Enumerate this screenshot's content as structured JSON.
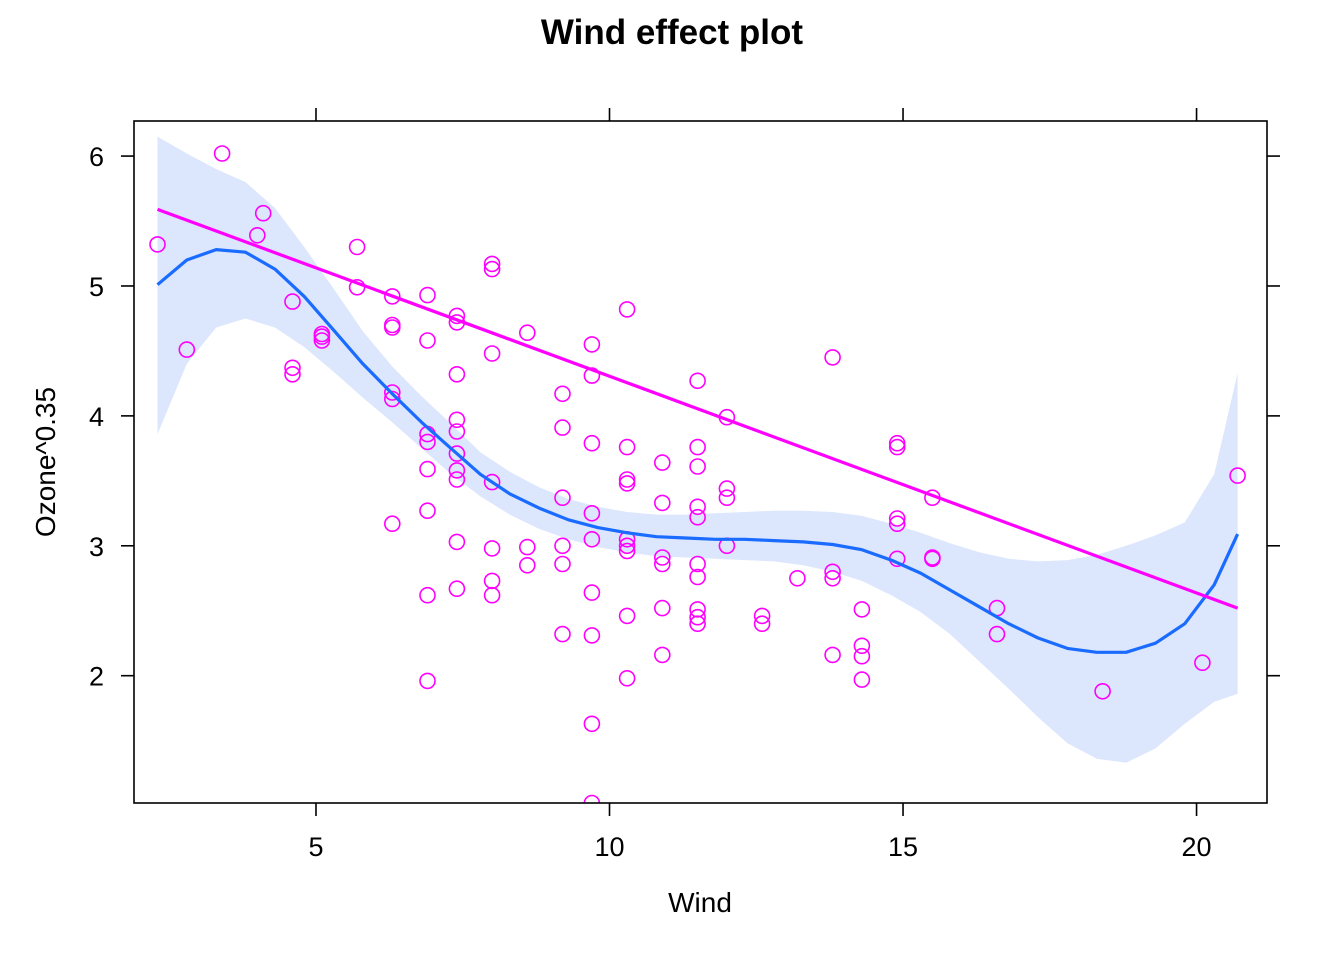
{
  "chart_data": {
    "type": "scatter",
    "title": "Wind effect plot",
    "xlabel": "Wind",
    "ylabel": "Ozone^0.35",
    "xlim": [
      1.9,
      21.2
    ],
    "ylim": [
      1.02,
      6.27
    ],
    "x_ticks": [
      5,
      10,
      15,
      20
    ],
    "y_ticks": [
      2,
      3,
      4,
      5,
      6
    ],
    "grid": false,
    "legend": "none",
    "colors": {
      "points": "#ff00ff",
      "linear_fit": "#ff00ff",
      "smooth_fit": "#1a6bff",
      "confidence_band": "#dce6fd",
      "frame": "#000000"
    },
    "points": [
      {
        "x": 2.3,
        "y": 5.32
      },
      {
        "x": 2.8,
        "y": 4.51
      },
      {
        "x": 3.4,
        "y": 6.02
      },
      {
        "x": 4.0,
        "y": 5.39
      },
      {
        "x": 4.1,
        "y": 5.56
      },
      {
        "x": 4.6,
        "y": 4.88
      },
      {
        "x": 4.6,
        "y": 4.37
      },
      {
        "x": 4.6,
        "y": 4.32
      },
      {
        "x": 5.1,
        "y": 4.63
      },
      {
        "x": 5.1,
        "y": 4.61
      },
      {
        "x": 5.1,
        "y": 4.58
      },
      {
        "x": 5.7,
        "y": 5.3
      },
      {
        "x": 5.7,
        "y": 4.99
      },
      {
        "x": 6.3,
        "y": 4.92
      },
      {
        "x": 6.3,
        "y": 4.7
      },
      {
        "x": 6.3,
        "y": 4.68
      },
      {
        "x": 6.3,
        "y": 4.18
      },
      {
        "x": 6.3,
        "y": 4.13
      },
      {
        "x": 6.3,
        "y": 3.17
      },
      {
        "x": 6.9,
        "y": 4.93
      },
      {
        "x": 6.9,
        "y": 4.58
      },
      {
        "x": 6.9,
        "y": 3.86
      },
      {
        "x": 6.9,
        "y": 3.8
      },
      {
        "x": 6.9,
        "y": 3.59
      },
      {
        "x": 6.9,
        "y": 3.27
      },
      {
        "x": 6.9,
        "y": 2.62
      },
      {
        "x": 6.9,
        "y": 1.96
      },
      {
        "x": 7.4,
        "y": 4.77
      },
      {
        "x": 7.4,
        "y": 4.72
      },
      {
        "x": 7.4,
        "y": 4.32
      },
      {
        "x": 7.4,
        "y": 3.97
      },
      {
        "x": 7.4,
        "y": 3.88
      },
      {
        "x": 7.4,
        "y": 3.71
      },
      {
        "x": 7.4,
        "y": 3.58
      },
      {
        "x": 7.4,
        "y": 3.51
      },
      {
        "x": 7.4,
        "y": 3.03
      },
      {
        "x": 7.4,
        "y": 2.67
      },
      {
        "x": 8.0,
        "y": 5.17
      },
      {
        "x": 8.0,
        "y": 5.13
      },
      {
        "x": 8.0,
        "y": 4.48
      },
      {
        "x": 8.0,
        "y": 3.49
      },
      {
        "x": 8.0,
        "y": 2.98
      },
      {
        "x": 8.0,
        "y": 2.73
      },
      {
        "x": 8.0,
        "y": 2.62
      },
      {
        "x": 8.6,
        "y": 4.64
      },
      {
        "x": 8.6,
        "y": 2.99
      },
      {
        "x": 8.6,
        "y": 2.85
      },
      {
        "x": 9.2,
        "y": 4.17
      },
      {
        "x": 9.2,
        "y": 3.91
      },
      {
        "x": 9.2,
        "y": 3.37
      },
      {
        "x": 9.2,
        "y": 3.0
      },
      {
        "x": 9.2,
        "y": 2.86
      },
      {
        "x": 9.2,
        "y": 2.32
      },
      {
        "x": 9.7,
        "y": 4.55
      },
      {
        "x": 9.7,
        "y": 4.31
      },
      {
        "x": 9.7,
        "y": 3.79
      },
      {
        "x": 9.7,
        "y": 3.25
      },
      {
        "x": 9.7,
        "y": 3.05
      },
      {
        "x": 9.7,
        "y": 2.64
      },
      {
        "x": 9.7,
        "y": 2.31
      },
      {
        "x": 9.7,
        "y": 1.63
      },
      {
        "x": 9.7,
        "y": 1.02
      },
      {
        "x": 10.3,
        "y": 4.82
      },
      {
        "x": 10.3,
        "y": 3.76
      },
      {
        "x": 10.3,
        "y": 3.51
      },
      {
        "x": 10.3,
        "y": 3.48
      },
      {
        "x": 10.3,
        "y": 3.05
      },
      {
        "x": 10.3,
        "y": 3.0
      },
      {
        "x": 10.3,
        "y": 2.96
      },
      {
        "x": 10.3,
        "y": 2.46
      },
      {
        "x": 10.3,
        "y": 1.98
      },
      {
        "x": 10.9,
        "y": 3.64
      },
      {
        "x": 10.9,
        "y": 3.33
      },
      {
        "x": 10.9,
        "y": 2.91
      },
      {
        "x": 10.9,
        "y": 2.86
      },
      {
        "x": 10.9,
        "y": 2.52
      },
      {
        "x": 10.9,
        "y": 2.16
      },
      {
        "x": 11.5,
        "y": 4.27
      },
      {
        "x": 11.5,
        "y": 3.76
      },
      {
        "x": 11.5,
        "y": 3.61
      },
      {
        "x": 11.5,
        "y": 3.3
      },
      {
        "x": 11.5,
        "y": 3.22
      },
      {
        "x": 11.5,
        "y": 2.86
      },
      {
        "x": 11.5,
        "y": 2.76
      },
      {
        "x": 11.5,
        "y": 2.51
      },
      {
        "x": 11.5,
        "y": 2.45
      },
      {
        "x": 11.5,
        "y": 2.4
      },
      {
        "x": 12.0,
        "y": 3.99
      },
      {
        "x": 12.0,
        "y": 3.44
      },
      {
        "x": 12.0,
        "y": 3.37
      },
      {
        "x": 12.0,
        "y": 3.0
      },
      {
        "x": 12.6,
        "y": 2.46
      },
      {
        "x": 12.6,
        "y": 2.4
      },
      {
        "x": 13.2,
        "y": 2.75
      },
      {
        "x": 13.8,
        "y": 4.45
      },
      {
        "x": 13.8,
        "y": 2.8
      },
      {
        "x": 13.8,
        "y": 2.75
      },
      {
        "x": 13.8,
        "y": 2.16
      },
      {
        "x": 14.3,
        "y": 2.51
      },
      {
        "x": 14.3,
        "y": 2.23
      },
      {
        "x": 14.3,
        "y": 2.15
      },
      {
        "x": 14.3,
        "y": 1.97
      },
      {
        "x": 14.9,
        "y": 3.79
      },
      {
        "x": 14.9,
        "y": 3.76
      },
      {
        "x": 14.9,
        "y": 3.21
      },
      {
        "x": 14.9,
        "y": 3.17
      },
      {
        "x": 14.9,
        "y": 2.9
      },
      {
        "x": 15.5,
        "y": 3.37
      },
      {
        "x": 15.5,
        "y": 2.91
      },
      {
        "x": 15.5,
        "y": 2.9
      },
      {
        "x": 16.6,
        "y": 2.52
      },
      {
        "x": 16.6,
        "y": 2.32
      },
      {
        "x": 18.4,
        "y": 1.88
      },
      {
        "x": 20.1,
        "y": 2.1
      },
      {
        "x": 20.7,
        "y": 3.54
      }
    ],
    "linear_fit": [
      {
        "x": 2.3,
        "y": 5.59
      },
      {
        "x": 20.7,
        "y": 2.52
      }
    ],
    "smooth_fit": [
      {
        "x": 2.3,
        "y": 5.01
      },
      {
        "x": 2.8,
        "y": 5.2
      },
      {
        "x": 3.3,
        "y": 5.28
      },
      {
        "x": 3.8,
        "y": 5.26
      },
      {
        "x": 4.3,
        "y": 5.13
      },
      {
        "x": 4.8,
        "y": 4.92
      },
      {
        "x": 5.3,
        "y": 4.66
      },
      {
        "x": 5.8,
        "y": 4.4
      },
      {
        "x": 6.3,
        "y": 4.17
      },
      {
        "x": 6.8,
        "y": 3.95
      },
      {
        "x": 7.3,
        "y": 3.75
      },
      {
        "x": 7.8,
        "y": 3.55
      },
      {
        "x": 8.3,
        "y": 3.4
      },
      {
        "x": 8.8,
        "y": 3.29
      },
      {
        "x": 9.3,
        "y": 3.2
      },
      {
        "x": 9.8,
        "y": 3.14
      },
      {
        "x": 10.3,
        "y": 3.1
      },
      {
        "x": 10.8,
        "y": 3.07
      },
      {
        "x": 11.3,
        "y": 3.06
      },
      {
        "x": 11.8,
        "y": 3.05
      },
      {
        "x": 12.3,
        "y": 3.05
      },
      {
        "x": 12.8,
        "y": 3.04
      },
      {
        "x": 13.3,
        "y": 3.03
      },
      {
        "x": 13.8,
        "y": 3.01
      },
      {
        "x": 14.3,
        "y": 2.97
      },
      {
        "x": 14.8,
        "y": 2.89
      },
      {
        "x": 15.3,
        "y": 2.79
      },
      {
        "x": 15.8,
        "y": 2.66
      },
      {
        "x": 16.3,
        "y": 2.53
      },
      {
        "x": 16.8,
        "y": 2.4
      },
      {
        "x": 17.3,
        "y": 2.29
      },
      {
        "x": 17.8,
        "y": 2.21
      },
      {
        "x": 18.3,
        "y": 2.18
      },
      {
        "x": 18.8,
        "y": 2.18
      },
      {
        "x": 19.3,
        "y": 2.25
      },
      {
        "x": 19.8,
        "y": 2.4
      },
      {
        "x": 20.3,
        "y": 2.7
      },
      {
        "x": 20.7,
        "y": 3.09
      }
    ],
    "confidence_band": {
      "x": [
        2.3,
        2.8,
        3.3,
        3.8,
        4.3,
        4.8,
        5.3,
        5.8,
        6.3,
        6.8,
        7.3,
        7.8,
        8.3,
        8.8,
        9.3,
        9.8,
        10.3,
        10.8,
        11.3,
        11.8,
        12.3,
        12.8,
        13.3,
        13.8,
        14.3,
        14.8,
        15.3,
        15.8,
        16.3,
        16.8,
        17.3,
        17.8,
        18.3,
        18.8,
        19.3,
        19.8,
        20.3,
        20.7
      ],
      "upper": [
        6.15,
        6.02,
        5.9,
        5.8,
        5.6,
        5.3,
        4.98,
        4.65,
        4.38,
        4.15,
        3.94,
        3.72,
        3.57,
        3.45,
        3.36,
        3.3,
        3.26,
        3.24,
        3.24,
        3.25,
        3.26,
        3.27,
        3.27,
        3.26,
        3.23,
        3.17,
        3.1,
        3.02,
        2.95,
        2.9,
        2.88,
        2.89,
        2.93,
        3.0,
        3.08,
        3.18,
        3.55,
        4.33
      ],
      "lower": [
        3.86,
        4.4,
        4.68,
        4.75,
        4.68,
        4.53,
        4.34,
        4.14,
        3.95,
        3.75,
        3.55,
        3.38,
        3.24,
        3.13,
        3.05,
        2.99,
        2.95,
        2.92,
        2.91,
        2.9,
        2.89,
        2.88,
        2.85,
        2.8,
        2.73,
        2.62,
        2.49,
        2.32,
        2.11,
        1.9,
        1.68,
        1.48,
        1.36,
        1.33,
        1.44,
        1.63,
        1.8,
        1.86
      ]
    }
  }
}
